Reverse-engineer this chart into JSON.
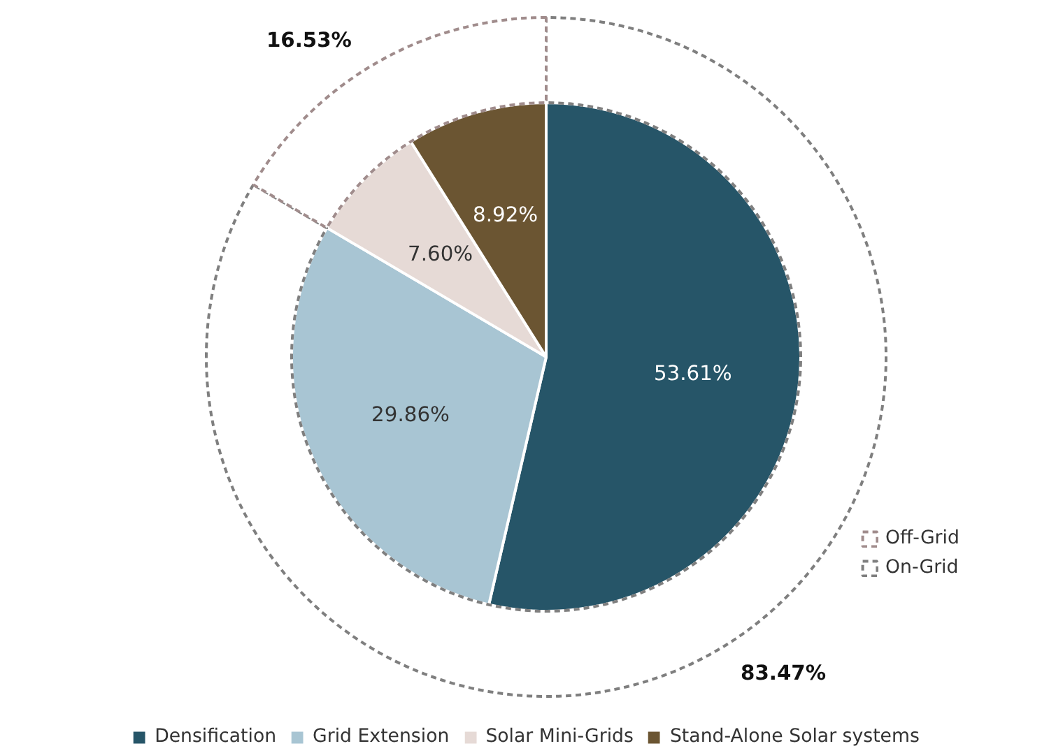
{
  "chart_data": {
    "type": "pie",
    "categories": [
      "Densification",
      "Grid Extension",
      "Solar Mini-Grids",
      "Stand-Alone Solar systems",
      "On-Grid",
      "Off-Grid"
    ],
    "colors": [
      "#265568",
      "#a8c5d3",
      "#e6dad6",
      "#6b5532",
      "#7f7f7f",
      "#a08c8c"
    ],
    "legend": "bottom",
    "series": [
      {
        "values": [
          53.61,
          29.86,
          7.6,
          8.92,
          null,
          null
        ],
        "value_labels": [
          "53.61%",
          "29.86%",
          "7.60%",
          "8.92%",
          null,
          null
        ]
      },
      {
        "type": "donut",
        "values": [
          null,
          null,
          null,
          null,
          83.47,
          16.53
        ],
        "value_labels": [
          null,
          null,
          null,
          null,
          "83.47%",
          "16.53%"
        ],
        "line_style": "dashed"
      }
    ]
  }
}
